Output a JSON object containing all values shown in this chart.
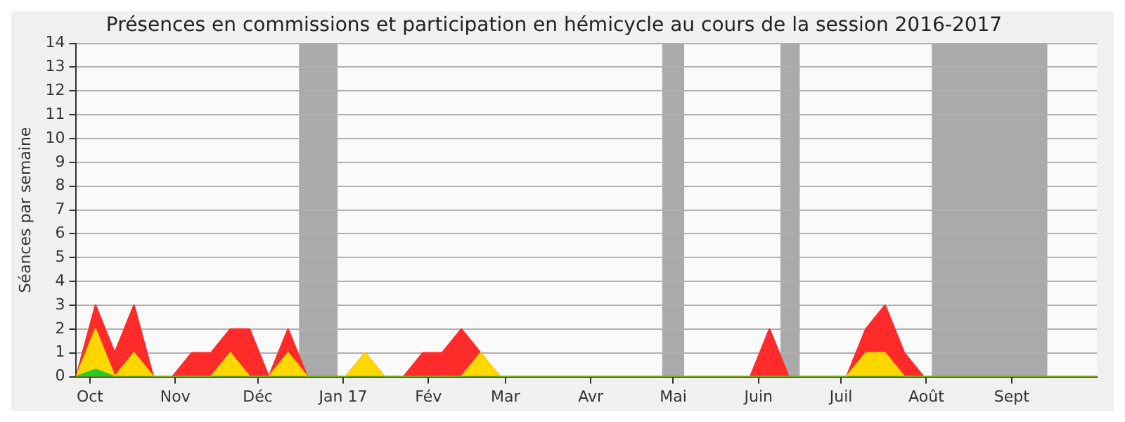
{
  "chart_data": {
    "type": "area",
    "title": "Présences en commissions et participation en hémicycle au cours de la session 2016-2017",
    "ylabel": "Séances par semaine",
    "x": [
      "2016-09-26",
      "2016-10-03",
      "2016-10-10",
      "2016-10-17",
      "2016-10-24",
      "2016-10-31",
      "2016-11-07",
      "2016-11-14",
      "2016-11-21",
      "2016-11-28",
      "2016-12-05",
      "2016-12-12",
      "2016-12-19",
      "2016-12-26",
      "2017-01-02",
      "2017-01-09",
      "2017-01-16",
      "2017-01-23",
      "2017-01-30",
      "2017-02-06",
      "2017-02-13",
      "2017-02-20",
      "2017-02-27",
      "2017-03-06",
      "2017-03-13",
      "2017-03-20",
      "2017-03-27",
      "2017-04-03",
      "2017-04-10",
      "2017-04-17",
      "2017-04-24",
      "2017-05-01",
      "2017-05-08",
      "2017-05-15",
      "2017-05-22",
      "2017-05-29",
      "2017-06-05",
      "2017-06-12",
      "2017-06-19",
      "2017-06-26",
      "2017-07-03",
      "2017-07-10",
      "2017-07-17",
      "2017-07-24",
      "2017-07-31",
      "2017-08-07",
      "2017-08-14",
      "2017-08-21",
      "2017-08-28",
      "2017-09-04",
      "2017-09-11",
      "2017-09-18",
      "2017-09-25",
      "2017-10-02"
    ],
    "series": [
      {
        "color": "#ff2a2a",
        "values": [
          0,
          3,
          1,
          3,
          0,
          0,
          1,
          1,
          2,
          2,
          0,
          2,
          0,
          0,
          0,
          1,
          0,
          0,
          1,
          1,
          2,
          1,
          0,
          0,
          0,
          0,
          0,
          0,
          0,
          0,
          0,
          0,
          0,
          0,
          0,
          0,
          2,
          0,
          0,
          0,
          0,
          2,
          3,
          1,
          0,
          0,
          0,
          0,
          0,
          0,
          0,
          0,
          0,
          0
        ]
      },
      {
        "color": "#ffd700",
        "values": [
          0,
          2,
          0,
          1,
          0,
          0,
          0,
          0,
          1,
          0,
          0,
          1,
          0,
          0,
          0,
          1,
          0,
          0,
          0,
          0,
          0,
          1,
          0,
          0,
          0,
          0,
          0,
          0,
          0,
          0,
          0,
          0,
          0,
          0,
          0,
          0,
          0,
          0,
          0,
          0,
          0,
          1,
          1,
          0,
          0,
          0,
          0,
          0,
          0,
          0,
          0,
          0,
          0,
          0
        ]
      },
      {
        "color": "#22cc22",
        "values": [
          0,
          0.3,
          0,
          0,
          0,
          0,
          0,
          0,
          0,
          0,
          0,
          0,
          0,
          0,
          0,
          0,
          0,
          0,
          0,
          0,
          0,
          0,
          0,
          0,
          0,
          0,
          0,
          0,
          0,
          0,
          0,
          0,
          0,
          0,
          0,
          0,
          0,
          0,
          0,
          0,
          0,
          0,
          0,
          0,
          0,
          0,
          0,
          0,
          0,
          0,
          0,
          0,
          0,
          0
        ]
      }
    ],
    "xlim": [
      "2016-09-26",
      "2017-10-02"
    ],
    "xticks": [
      {
        "value": "2016-10-01",
        "label": "Oct"
      },
      {
        "value": "2016-11-01",
        "label": "Nov"
      },
      {
        "value": "2016-12-01",
        "label": "Déc"
      },
      {
        "value": "2017-01-01",
        "label": "Jan 17"
      },
      {
        "value": "2017-02-01",
        "label": "Fév"
      },
      {
        "value": "2017-03-01",
        "label": "Mar"
      },
      {
        "value": "2017-04-01",
        "label": "Avr"
      },
      {
        "value": "2017-05-01",
        "label": "Mai"
      },
      {
        "value": "2017-06-01",
        "label": "Juin"
      },
      {
        "value": "2017-07-01",
        "label": "Juil"
      },
      {
        "value": "2017-08-01",
        "label": "Août"
      },
      {
        "value": "2017-09-01",
        "label": "Sept"
      }
    ],
    "ylim": [
      0,
      14
    ],
    "yticks": [
      0,
      1,
      2,
      3,
      4,
      5,
      6,
      7,
      8,
      9,
      10,
      11,
      12,
      13,
      14
    ],
    "bands": [
      {
        "axis": "x",
        "from": "2016-12-16",
        "to": "2016-12-30",
        "color": "#aaaaaa"
      },
      {
        "axis": "x",
        "from": "2017-04-27",
        "to": "2017-05-05",
        "color": "#aaaaaa"
      },
      {
        "axis": "x",
        "from": "2017-06-09",
        "to": "2017-06-16",
        "color": "#aaaaaa"
      },
      {
        "axis": "x",
        "from": "2017-08-03",
        "to": "2017-09-14",
        "color": "#aaaaaa"
      }
    ],
    "grid": "y",
    "legend": false,
    "marker": "none",
    "line_style": "solid"
  }
}
